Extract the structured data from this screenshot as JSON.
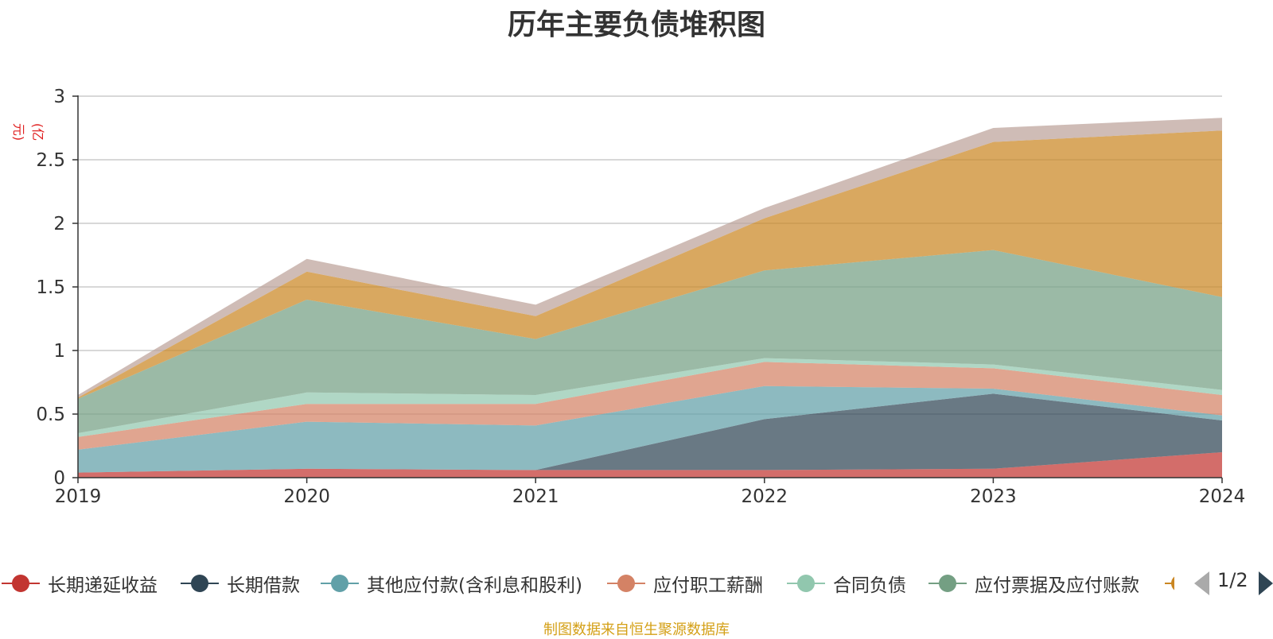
{
  "chart_data": {
    "type": "area",
    "stacked": true,
    "title": "历年主要负债堆积图",
    "unit_label": "(亿元)",
    "x": [
      "2019",
      "2020",
      "2021",
      "2022",
      "2023",
      "2024"
    ],
    "ylim": [
      0,
      3
    ],
    "yticks": [
      "0",
      "0.5",
      "1",
      "1.5",
      "2",
      "2.5",
      "3"
    ],
    "grid": true,
    "legend_position": "bottom",
    "series": [
      {
        "name": "长期递延收益",
        "color": "#c23531",
        "values": [
          0.04,
          0.07,
          0.06,
          0.06,
          0.07,
          0.2
        ]
      },
      {
        "name": "长期借款",
        "color": "#2f4554",
        "values": [
          0,
          0,
          0,
          0.4,
          0.59,
          0.25
        ]
      },
      {
        "name": "其他应付款(含利息和股利)",
        "color": "#61a0a8",
        "values": [
          0.18,
          0.37,
          0.35,
          0.26,
          0.04,
          0.04
        ]
      },
      {
        "name": "应付职工薪酬",
        "color": "#d48265",
        "values": [
          0.1,
          0.14,
          0.17,
          0.19,
          0.16,
          0.16
        ]
      },
      {
        "name": "合同负债",
        "color": "#91c7ae",
        "values": [
          0.03,
          0.09,
          0.07,
          0.03,
          0.03,
          0.04
        ]
      },
      {
        "name": "应付票据及应付账款",
        "color": "#749f83",
        "values": [
          0.27,
          0.73,
          0.44,
          0.69,
          0.9,
          0.73
        ]
      },
      {
        "name": "",
        "color": "#ca8622",
        "values": [
          0.01,
          0.22,
          0.18,
          0.41,
          0.85,
          1.31
        ]
      },
      {
        "name": "",
        "color": "#bda29a",
        "values": [
          0.02,
          0.1,
          0.09,
          0.08,
          0.11,
          0.1
        ]
      }
    ]
  },
  "legend": {
    "page_label": "1/2",
    "prev_color": "#aaaaaa",
    "next_color": "#2f4554"
  },
  "source_note": "制图数据来自恒生聚源数据库"
}
